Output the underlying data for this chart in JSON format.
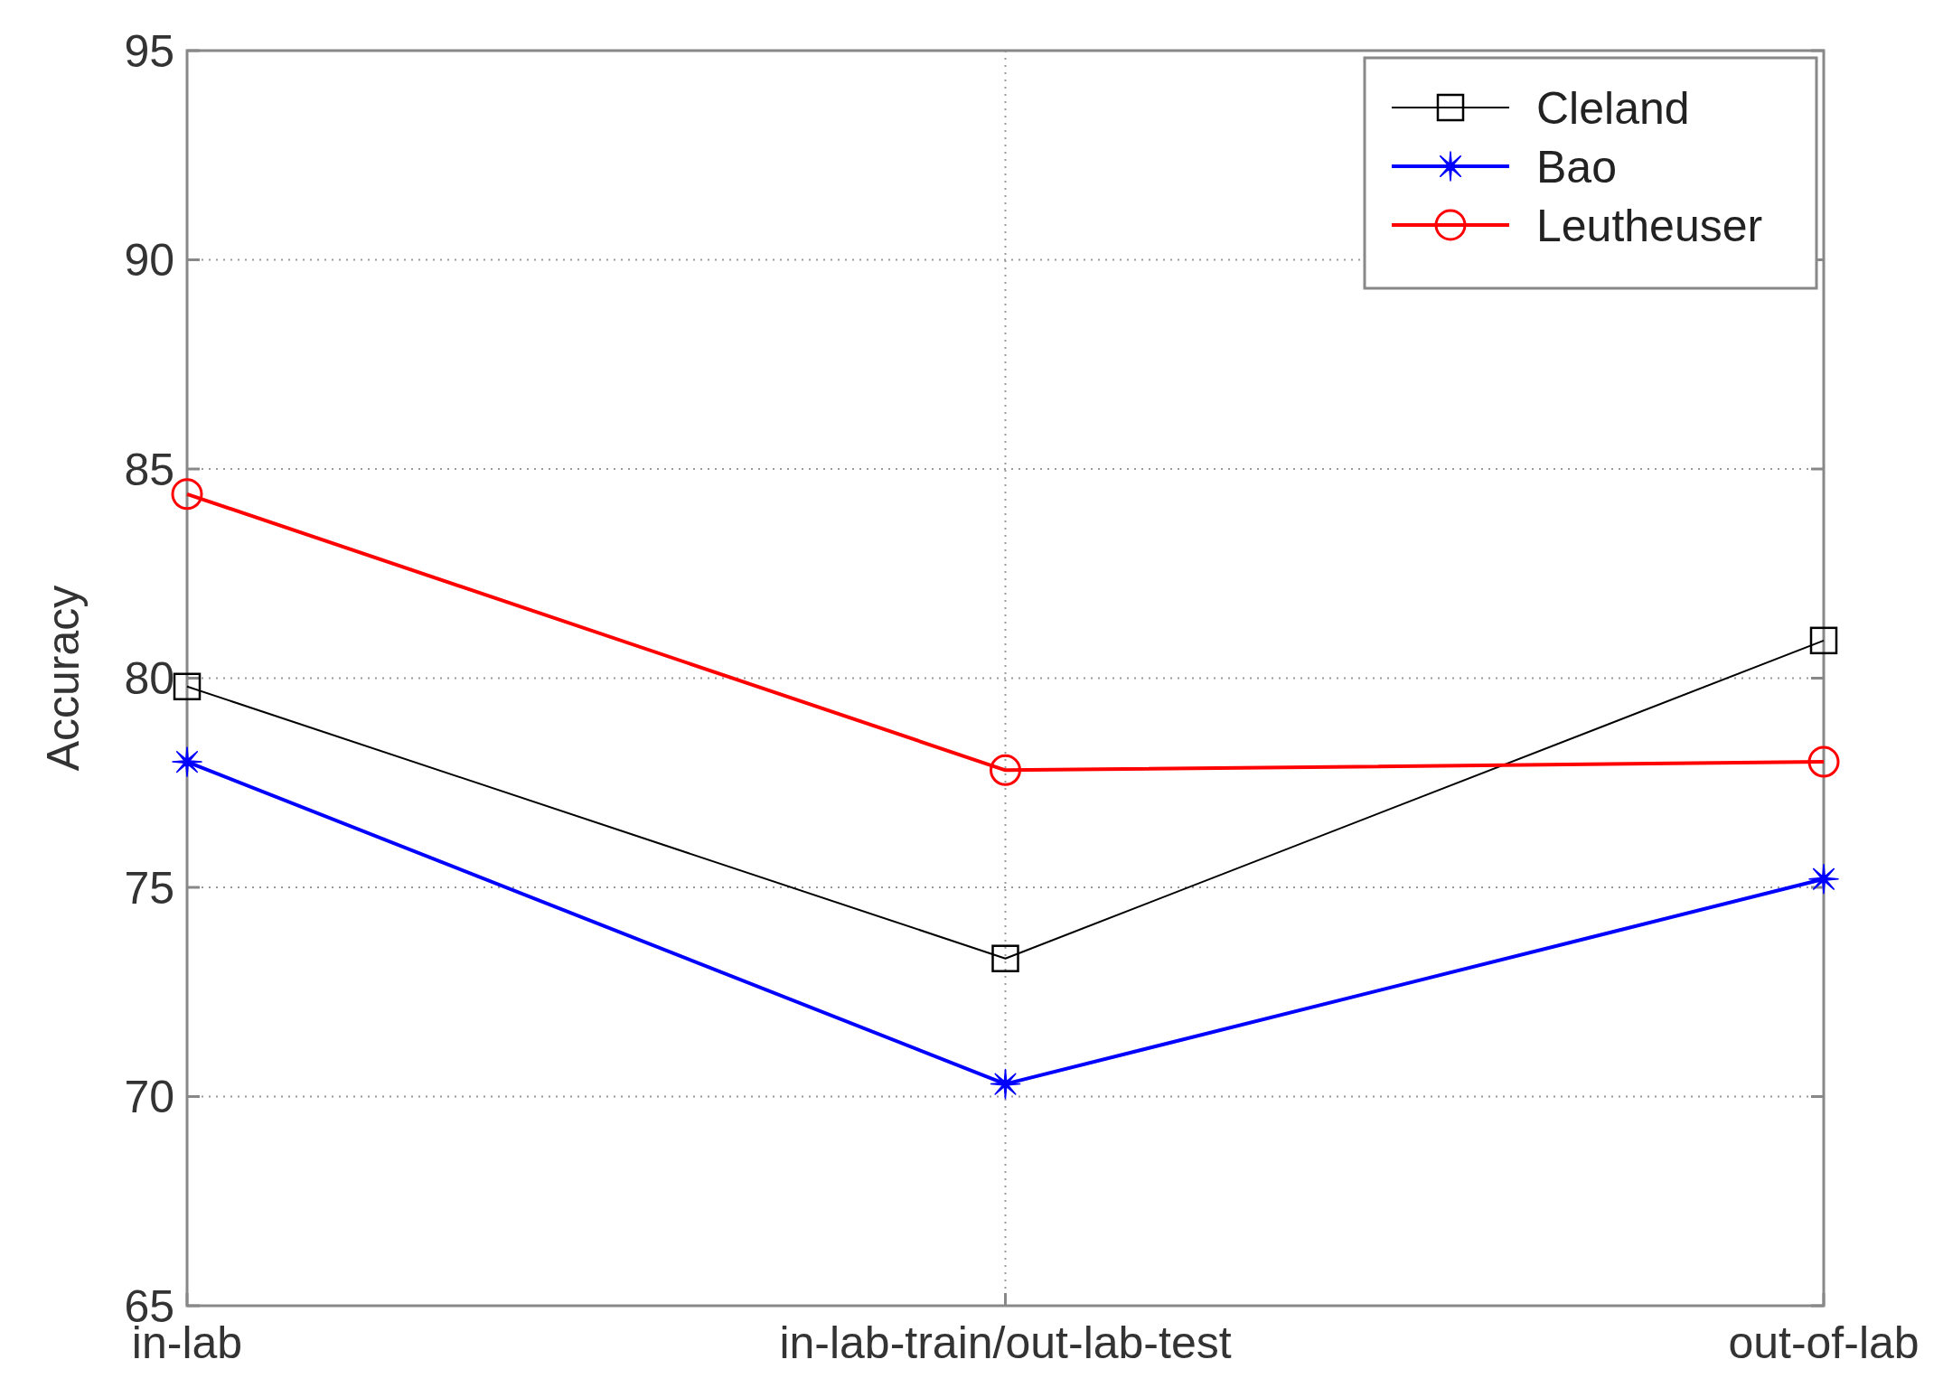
{
  "chart_data": {
    "type": "line",
    "ylabel": "Accuracy",
    "categories": [
      "in-lab",
      "in-lab-train/out-lab-test",
      "out-of-lab"
    ],
    "series": [
      {
        "name": "Cleland",
        "color": "#000000",
        "marker": "square",
        "values": [
          79.8,
          73.3,
          80.9
        ]
      },
      {
        "name": "Bao",
        "color": "#0000ff",
        "marker": "star",
        "values": [
          78.0,
          70.3,
          75.2
        ]
      },
      {
        "name": "Leutheuser",
        "color": "#ff0000",
        "marker": "circle",
        "values": [
          84.4,
          77.8,
          78.0
        ]
      }
    ],
    "ylim": [
      65,
      95
    ],
    "yticks": [
      65,
      70,
      75,
      80,
      85,
      90,
      95
    ],
    "grid": true,
    "legend": "top right"
  }
}
